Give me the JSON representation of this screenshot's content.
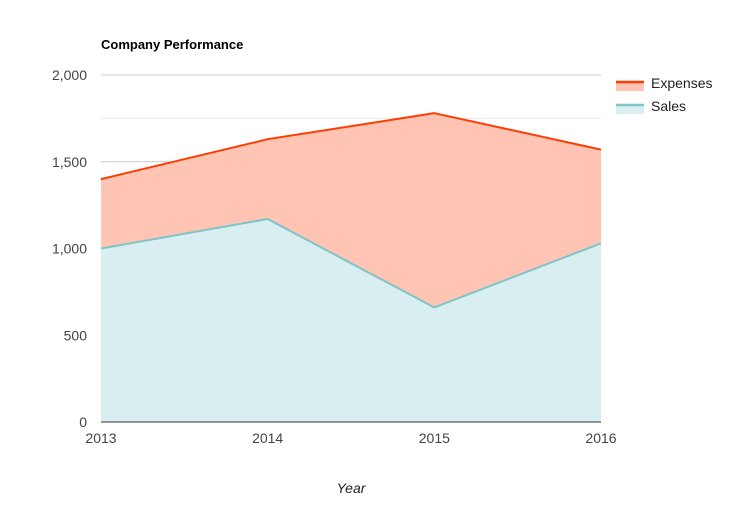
{
  "chart_data": {
    "type": "area",
    "title": "Company Performance",
    "xlabel": "Year",
    "ylabel": "",
    "x": [
      "2013",
      "2014",
      "2015",
      "2016"
    ],
    "ylim": [
      0,
      2000
    ],
    "yticks": [
      0,
      500,
      1000,
      1500,
      2000
    ],
    "ytick_labels": [
      "0",
      "500",
      "1,000",
      "1,500",
      "2,000"
    ],
    "grid": true,
    "legend_position": "right",
    "series": [
      {
        "name": "Expenses",
        "values": [
          1400,
          1630,
          1780,
          1570
        ],
        "color": "#ff3d00",
        "fill": "#ffc4b3"
      },
      {
        "name": "Sales",
        "values": [
          1000,
          1170,
          660,
          1030
        ],
        "color": "#7fc4c7",
        "fill": "#d8eef0"
      }
    ]
  }
}
